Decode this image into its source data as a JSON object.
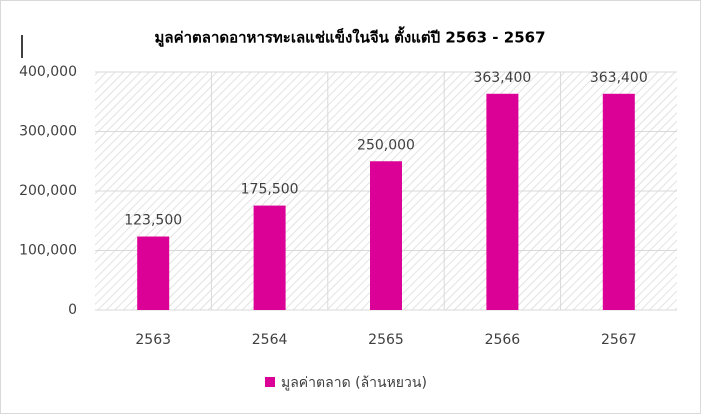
{
  "chart_data": {
    "type": "bar",
    "title": "มูลค่าตลาดอาหารทะเลแช่แข็งในจีน ตั้งแต่ปี 2563 - 2567",
    "categories": [
      "2563",
      "2564",
      "2565",
      "2566",
      "2567"
    ],
    "series": [
      {
        "name": "มูลค่าตลาด (ล้านหยวน)",
        "color": "#db0096",
        "values": [
          123500,
          175500,
          250000,
          363400,
          363400
        ],
        "value_labels": [
          "123,500",
          "175,500",
          "250,000",
          "363,400",
          "363,400"
        ]
      }
    ],
    "ylim": [
      0,
      400000
    ],
    "yticks": [
      0,
      {
        "value": 100000,
        "label": "100,000"
      },
      {
        "value": 200000,
        "label": "200,000"
      },
      {
        "value": 300000,
        "label": "300,000"
      },
      {
        "value": 400000,
        "label": "400,000"
      }
    ],
    "grid": true,
    "legend": "bottom"
  }
}
